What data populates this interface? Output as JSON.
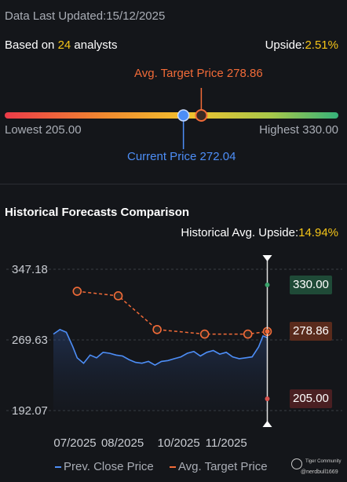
{
  "header": {
    "updated_label": "Data Last Updated:",
    "updated_date": "15/12/2025"
  },
  "summary": {
    "based_on_prefix": "Based on ",
    "analyst_count": "24",
    "based_on_suffix": " analysts",
    "upside_label": "Upside:",
    "upside_value": "2.51%"
  },
  "target_bar": {
    "avg_target_label": "Avg. Target Price 278.86",
    "lowest_label": "Lowest 205.00",
    "highest_label": "Highest 330.00",
    "current_label": "Current Price 272.04",
    "lowest": 205.0,
    "highest": 330.0,
    "current": 272.04,
    "avg_target": 278.86,
    "colors": {
      "avg": "#f26b38",
      "current": "#4d8ef7"
    }
  },
  "history": {
    "title": "Historical Forecasts Comparison",
    "avg_upside_label": "Historical Avg. Upside:",
    "avg_upside_value": "14.94%"
  },
  "chart_data": {
    "type": "line",
    "y_ticks": [
      "347.18",
      "269.63",
      "192.07"
    ],
    "ylim": [
      192.07,
      347.18
    ],
    "x_ticks": [
      "07/2025",
      "08/2025",
      "10/2025",
      "11/2025"
    ],
    "x_tick_positions": [
      0.5,
      1.6,
      2.9,
      4.0
    ],
    "xlim": [
      0,
      5.25
    ],
    "series": [
      {
        "name": "Prev. Close Price",
        "color": "#4d8ef7",
        "x": [
          0.0,
          0.15,
          0.3,
          0.45,
          0.55,
          0.7,
          0.85,
          1.0,
          1.15,
          1.3,
          1.45,
          1.6,
          1.75,
          1.9,
          2.05,
          2.2,
          2.35,
          2.5,
          2.65,
          2.8,
          2.95,
          3.1,
          3.25,
          3.4,
          3.55,
          3.7,
          3.85,
          4.0,
          4.15,
          4.3,
          4.45,
          4.6,
          4.75,
          4.85,
          4.95
        ],
        "values": [
          276,
          281,
          278,
          262,
          250,
          244,
          253,
          250,
          256,
          255,
          253,
          252,
          248,
          245,
          244,
          246,
          242,
          246,
          247,
          249,
          251,
          255,
          257,
          252,
          256,
          258,
          254,
          256,
          251,
          249,
          250,
          251,
          262,
          274,
          272
        ]
      },
      {
        "name": "Avg. Target Price",
        "color": "#f26b38",
        "x": [
          0.55,
          1.5,
          2.4,
          3.5,
          4.5,
          4.95
        ],
        "values": [
          323,
          318,
          281,
          276,
          276,
          278.86
        ]
      }
    ],
    "right_tags": [
      {
        "label": "330.00",
        "value": 330.0,
        "color": "#1f4a37",
        "dot": "#3aa36b"
      },
      {
        "label": "278.86",
        "value": 278.86,
        "color": "#5a2b1c",
        "dot": "#f26b38"
      },
      {
        "label": "205.00",
        "value": 205.0,
        "color": "#4a1f22",
        "dot": "#d9534f"
      }
    ],
    "legend": {
      "placement": "bottom",
      "prev_label": "Prev. Close Price",
      "avg_label": "Avg. Target Price"
    }
  },
  "watermark": {
    "brand": "Tiger Community",
    "handle": "@nerdbull1669"
  }
}
